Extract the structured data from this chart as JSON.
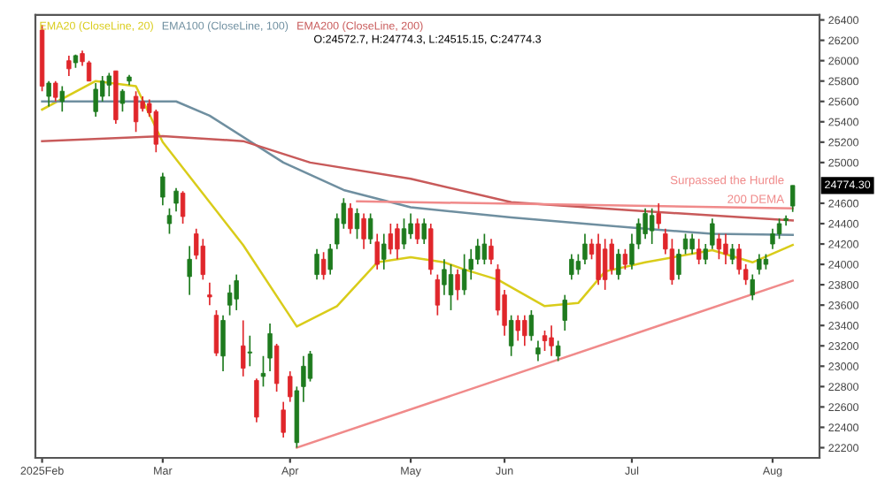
{
  "chart_data": {
    "type": "candlestick",
    "categories": [
      "2025Feb",
      null,
      null,
      null,
      null,
      null,
      null,
      null,
      null,
      null,
      null,
      null,
      null,
      null,
      null,
      null,
      null,
      null,
      "Mar",
      null,
      null,
      null,
      null,
      null,
      null,
      null,
      null,
      null,
      null,
      null,
      null,
      null,
      null,
      null,
      null,
      null,
      null,
      "Apr",
      null,
      null,
      null,
      null,
      null,
      null,
      null,
      null,
      null,
      null,
      null,
      null,
      null,
      null,
      null,
      null,
      null,
      "May",
      null,
      null,
      null,
      null,
      null,
      null,
      null,
      null,
      null,
      null,
      null,
      null,
      null,
      "Jun",
      null,
      null,
      null,
      null,
      null,
      null,
      null,
      null,
      null,
      null,
      null,
      null,
      null,
      null,
      null,
      null,
      null,
      null,
      "Jul",
      null,
      null,
      null,
      null,
      null,
      null,
      null,
      null,
      null,
      null,
      null,
      null,
      null,
      null,
      null,
      null,
      null,
      null,
      null,
      null,
      "Aug",
      null,
      null,
      null
    ],
    "ohlc": [
      [
        26300,
        26350,
        25700,
        25750
      ],
      [
        25650,
        25800,
        25550,
        25780
      ],
      [
        25780,
        25800,
        25600,
        25640
      ],
      [
        25600,
        25750,
        25500,
        25700
      ],
      [
        26000,
        26050,
        25850,
        25920
      ],
      [
        25980,
        26060,
        25930,
        26050
      ],
      [
        26070,
        26100,
        25950,
        25990
      ],
      [
        25980,
        26000,
        25800,
        25800
      ],
      [
        25500,
        25780,
        25450,
        25720
      ],
      [
        25650,
        25850,
        25600,
        25800
      ],
      [
        25760,
        25880,
        25650,
        25850
      ],
      [
        25900,
        25900,
        25380,
        25420
      ],
      [
        25580,
        25720,
        25500,
        25700
      ],
      [
        25800,
        25860,
        25760,
        25840
      ],
      [
        25650,
        25700,
        25300,
        25400
      ],
      [
        25600,
        25650,
        25500,
        25530
      ],
      [
        25580,
        25620,
        25450,
        25490
      ],
      [
        25500,
        25520,
        25100,
        25180
      ],
      [
        24660,
        24900,
        24580,
        24860
      ],
      [
        24400,
        24550,
        24300,
        24480
      ],
      [
        24600,
        24750,
        24520,
        24720
      ],
      [
        24700,
        24720,
        24400,
        24470
      ],
      [
        23880,
        24180,
        23700,
        24050
      ],
      [
        24300,
        24350,
        24050,
        24090
      ],
      [
        24180,
        24250,
        23850,
        23900
      ],
      [
        23700,
        23820,
        23600,
        23680
      ],
      [
        23500,
        23550,
        23100,
        23130
      ],
      [
        23100,
        23500,
        22950,
        23450
      ],
      [
        23600,
        23800,
        23500,
        23720
      ],
      [
        23660,
        23900,
        23550,
        23840
      ],
      [
        23200,
        23450,
        22900,
        22980
      ],
      [
        23130,
        23300,
        23000,
        23140
      ],
      [
        22860,
        22880,
        22450,
        22500
      ],
      [
        22900,
        23100,
        22800,
        22930
      ],
      [
        23080,
        23420,
        22950,
        23320
      ],
      [
        23200,
        23220,
        22750,
        22830
      ],
      [
        22570,
        22650,
        22300,
        22350
      ],
      [
        22900,
        22950,
        22650,
        22700
      ],
      [
        22250,
        22800,
        22200,
        22760
      ],
      [
        22800,
        23100,
        22650,
        23000
      ],
      [
        22880,
        23150,
        22850,
        23120
      ],
      [
        23900,
        24150,
        23850,
        24100
      ],
      [
        24050,
        24120,
        23850,
        23900
      ],
      [
        23950,
        24200,
        23900,
        24150
      ],
      [
        24200,
        24500,
        24150,
        24450
      ],
      [
        24400,
        24650,
        24350,
        24600
      ],
      [
        24550,
        24600,
        24300,
        24350
      ],
      [
        24350,
        24550,
        24250,
        24500
      ],
      [
        24450,
        24500,
        24150,
        24250
      ],
      [
        24250,
        24500,
        24200,
        24450
      ],
      [
        24220,
        24300,
        23950,
        24000
      ],
      [
        24050,
        24300,
        23950,
        24200
      ],
      [
        24300,
        24400,
        24100,
        24150
      ],
      [
        24350,
        24400,
        24050,
        24150
      ],
      [
        24200,
        24450,
        24150,
        24350
      ],
      [
        24300,
        24500,
        24250,
        24400
      ],
      [
        24400,
        24450,
        24200,
        24250
      ],
      [
        24250,
        24450,
        24200,
        24400
      ],
      [
        24350,
        24400,
        23900,
        23950
      ],
      [
        23850,
        23900,
        23500,
        23600
      ],
      [
        23800,
        24050,
        23700,
        23950
      ],
      [
        23700,
        24000,
        23550,
        23900
      ],
      [
        23900,
        23950,
        23650,
        23750
      ],
      [
        23750,
        24100,
        23700,
        23950
      ],
      [
        23950,
        24150,
        23850,
        24050
      ],
      [
        24050,
        24250,
        24000,
        24180
      ],
      [
        24050,
        24300,
        24000,
        24200
      ],
      [
        24180,
        24250,
        24000,
        24050
      ],
      [
        23950,
        24000,
        23500,
        23550
      ],
      [
        23700,
        23750,
        23300,
        23400
      ],
      [
        23200,
        23500,
        23100,
        23450
      ],
      [
        23450,
        23500,
        23250,
        23350
      ],
      [
        23450,
        23500,
        23200,
        23300
      ],
      [
        23300,
        23550,
        23250,
        23500
      ],
      [
        23120,
        23250,
        23050,
        23180
      ],
      [
        23300,
        23350,
        23150,
        23250
      ],
      [
        23280,
        23400,
        23100,
        23200
      ],
      [
        23100,
        23250,
        23050,
        23200
      ],
      [
        23450,
        23700,
        23350,
        23650
      ],
      [
        23900,
        24100,
        23850,
        24050
      ],
      [
        23950,
        24100,
        23900,
        24030
      ],
      [
        24050,
        24300,
        24000,
        24200
      ],
      [
        24200,
        24250,
        24050,
        24100
      ],
      [
        24200,
        24300,
        23800,
        23850
      ],
      [
        24150,
        24250,
        23750,
        23850
      ],
      [
        24200,
        24250,
        23900,
        23950
      ],
      [
        23900,
        24150,
        23850,
        24100
      ],
      [
        24100,
        24150,
        23950,
        24000
      ],
      [
        24000,
        24300,
        23950,
        24200
      ],
      [
        24200,
        24450,
        24150,
        24400
      ],
      [
        24300,
        24550,
        24250,
        24500
      ],
      [
        24330,
        24550,
        24200,
        24480
      ],
      [
        24500,
        24600,
        24350,
        24400
      ],
      [
        24300,
        24350,
        24100,
        24150
      ],
      [
        24150,
        24250,
        23800,
        23850
      ],
      [
        23900,
        24150,
        23850,
        24100
      ],
      [
        24150,
        24300,
        24100,
        24250
      ],
      [
        24150,
        24300,
        24100,
        24250
      ],
      [
        24150,
        24250,
        24000,
        24050
      ],
      [
        24050,
        24200,
        24000,
        24150
      ],
      [
        24190,
        24450,
        24150,
        24400
      ],
      [
        24250,
        24300,
        24050,
        24150
      ],
      [
        24200,
        24300,
        24000,
        24100
      ],
      [
        24050,
        24200,
        24000,
        24150
      ],
      [
        24150,
        24200,
        23900,
        23950
      ],
      [
        23950,
        24000,
        23800,
        23850
      ],
      [
        23700,
        23900,
        23650,
        23850
      ],
      [
        23950,
        24100,
        23900,
        24050
      ],
      [
        24000,
        24100,
        23950,
        24050
      ],
      [
        24200,
        24350,
        24150,
        24300
      ],
      [
        24300,
        24450,
        24250,
        24400
      ],
      [
        24430,
        24480,
        24380,
        24450
      ],
      [
        24572.7,
        24774.3,
        24515.15,
        24774.3
      ]
    ],
    "colors": [
      "#e0262b",
      "#1e7b1e",
      "#e0262b",
      "#1e7b1e",
      "#e0262b",
      "#1e7b1e",
      "#e0262b",
      "#e0262b",
      "#1e7b1e",
      "#1e7b1e",
      "#1e7b1e",
      "#e0262b",
      "#1e7b1e",
      "#1e7b1e",
      "#e0262b",
      "#e0262b",
      "#e0262b",
      "#e0262b",
      "#1e7b1e",
      "#1e7b1e",
      "#1e7b1e",
      "#e0262b",
      "#1e7b1e",
      "#e0262b",
      "#e0262b",
      "#e0262b",
      "#e0262b",
      "#1e7b1e",
      "#1e7b1e",
      "#1e7b1e",
      "#e0262b",
      "#1e7b1e",
      "#e0262b",
      "#1e7b1e",
      "#1e7b1e",
      "#e0262b",
      "#e0262b",
      "#e0262b",
      "#1e7b1e",
      "#1e7b1e",
      "#1e7b1e",
      "#1e7b1e",
      "#e0262b",
      "#1e7b1e",
      "#1e7b1e",
      "#1e7b1e",
      "#e0262b",
      "#1e7b1e",
      "#e0262b",
      "#1e7b1e",
      "#e0262b",
      "#1e7b1e",
      "#e0262b",
      "#e0262b",
      "#1e7b1e",
      "#1e7b1e",
      "#e0262b",
      "#1e7b1e",
      "#e0262b",
      "#e0262b",
      "#1e7b1e",
      "#1e7b1e",
      "#e0262b",
      "#1e7b1e",
      "#1e7b1e",
      "#1e7b1e",
      "#1e7b1e",
      "#e0262b",
      "#e0262b",
      "#e0262b",
      "#1e7b1e",
      "#e0262b",
      "#e0262b",
      "#1e7b1e",
      "#1e7b1e",
      "#e0262b",
      "#e0262b",
      "#1e7b1e",
      "#1e7b1e",
      "#1e7b1e",
      "#1e7b1e",
      "#1e7b1e",
      "#e0262b",
      "#e0262b",
      "#e0262b",
      "#e0262b",
      "#1e7b1e",
      "#e0262b",
      "#1e7b1e",
      "#1e7b1e",
      "#1e7b1e",
      "#1e7b1e",
      "#e0262b",
      "#e0262b",
      "#e0262b",
      "#1e7b1e",
      "#1e7b1e",
      "#1e7b1e",
      "#e0262b",
      "#1e7b1e",
      "#1e7b1e",
      "#e0262b",
      "#e0262b",
      "#1e7b1e",
      "#e0262b",
      "#e0262b",
      "#1e7b1e",
      "#1e7b1e",
      "#1e7b1e",
      "#1e7b1e",
      "#1e7b1e",
      "#1e7b1e",
      "#1e7b1e"
    ],
    "series": [
      {
        "type": "line",
        "name": "EMA20 (CloseLine, 20)",
        "color": "#d9cc1a",
        "values": [
          25520,
          null,
          null,
          null,
          null,
          null,
          null,
          null,
          25800,
          null,
          null,
          null,
          null,
          null,
          25750,
          null,
          null,
          null,
          25200,
          null,
          null,
          null,
          null,
          null,
          null,
          24610,
          null,
          null,
          null,
          null,
          24190,
          null,
          null,
          null,
          null,
          null,
          23590,
          null,
          23390,
          null,
          null,
          null,
          null,
          null,
          23590,
          null,
          null,
          null,
          null,
          null,
          24020,
          null,
          null,
          null,
          null,
          24070,
          null,
          null,
          null,
          null,
          24020,
          null,
          null,
          23950,
          null,
          null,
          null,
          null,
          23850,
          null,
          null,
          null,
          null,
          null,
          null,
          23590,
          null,
          null,
          null,
          null,
          23620,
          null,
          null,
          null,
          23930,
          null,
          null,
          null,
          null,
          null,
          24020,
          null,
          null,
          null,
          null,
          null,
          null,
          null,
          null,
          null,
          24140,
          null,
          null,
          null,
          null,
          null,
          24020,
          null,
          null,
          null,
          null,
          null,
          24190
        ]
      },
      {
        "type": "line",
        "name": "EMA100 (CloseLine, 100)",
        "color": "#6f8fa0",
        "values": [
          25600,
          null,
          null,
          null,
          null,
          null,
          null,
          null,
          null,
          null,
          null,
          null,
          null,
          null,
          null,
          null,
          null,
          null,
          null,
          null,
          25600,
          null,
          null,
          null,
          null,
          25460,
          null,
          null,
          null,
          null,
          null,
          null,
          null,
          null,
          null,
          null,
          25000,
          null,
          null,
          null,
          null,
          null,
          null,
          null,
          null,
          24730,
          null,
          null,
          null,
          null,
          null,
          null,
          null,
          null,
          null,
          24560,
          null,
          null,
          null,
          null,
          null,
          null,
          null,
          null,
          null,
          null,
          null,
          null,
          null,
          null,
          24460,
          null,
          null,
          null,
          null,
          null,
          null,
          null,
          null,
          null,
          null,
          null,
          null,
          null,
          null,
          null,
          null,
          null,
          24360,
          null,
          null,
          null,
          null,
          null,
          null,
          null,
          null,
          null,
          null,
          null,
          24300,
          null,
          null,
          null,
          null,
          null,
          null,
          null,
          null,
          null,
          null,
          null,
          24290
        ]
      },
      {
        "type": "line",
        "name": "EMA200 (CloseLine, 200)",
        "color": "#c85a5a",
        "values": [
          25210,
          null,
          null,
          null,
          null,
          null,
          null,
          null,
          null,
          null,
          null,
          null,
          null,
          null,
          null,
          null,
          null,
          null,
          25260,
          null,
          null,
          null,
          null,
          null,
          null,
          null,
          null,
          null,
          null,
          null,
          25210,
          null,
          null,
          null,
          null,
          null,
          null,
          null,
          null,
          null,
          25000,
          null,
          null,
          null,
          null,
          null,
          null,
          null,
          null,
          null,
          null,
          null,
          null,
          null,
          null,
          24840,
          null,
          null,
          null,
          null,
          null,
          null,
          null,
          null,
          null,
          null,
          null,
          null,
          null,
          null,
          24610,
          null,
          null,
          null,
          null,
          null,
          null,
          null,
          null,
          null,
          null,
          null,
          null,
          null,
          null,
          null,
          null,
          null,
          24530,
          null,
          null,
          null,
          null,
          null,
          null,
          null,
          null,
          null,
          null,
          null,
          null,
          null,
          null,
          null,
          null,
          null,
          null,
          null,
          null,
          null,
          null,
          null,
          24430
        ]
      },
      {
        "type": "line",
        "color": "#f08a8a",
        "values": [
          null,
          null,
          null,
          null,
          null,
          null,
          null,
          null,
          null,
          null,
          null,
          null,
          null,
          null,
          null,
          null,
          null,
          null,
          null,
          null,
          null,
          null,
          null,
          null,
          null,
          null,
          null,
          null,
          null,
          null,
          null,
          null,
          null,
          null,
          null,
          null,
          null,
          null,
          null,
          null,
          null,
          null,
          null,
          null,
          null,
          null,
          null,
          24620,
          null,
          null,
          null,
          null,
          null,
          null,
          null,
          null,
          null,
          null,
          null,
          null,
          null,
          null,
          null,
          null,
          null,
          null,
          null,
          null,
          null,
          null,
          null,
          null,
          null,
          null,
          null,
          null,
          null,
          null,
          null,
          null,
          null,
          null,
          null,
          null,
          null,
          null,
          null,
          null,
          null,
          null,
          null,
          null,
          null,
          null,
          null,
          null,
          null,
          null,
          null,
          null,
          null,
          null,
          null,
          null,
          null,
          null,
          null,
          null,
          null,
          null,
          null,
          null,
          24550
        ]
      },
      {
        "type": "line",
        "color": "#f08a8a",
        "values": [
          null,
          null,
          null,
          null,
          null,
          null,
          null,
          null,
          null,
          null,
          null,
          null,
          null,
          null,
          null,
          null,
          null,
          null,
          null,
          null,
          null,
          null,
          null,
          null,
          null,
          null,
          null,
          null,
          null,
          null,
          null,
          null,
          null,
          null,
          null,
          null,
          null,
          null,
          22200,
          null,
          null,
          null,
          null,
          null,
          null,
          null,
          null,
          null,
          null,
          null,
          null,
          null,
          null,
          null,
          null,
          null,
          null,
          null,
          null,
          null,
          null,
          null,
          null,
          null,
          null,
          null,
          null,
          null,
          null,
          null,
          null,
          null,
          null,
          null,
          null,
          null,
          null,
          null,
          null,
          null,
          null,
          null,
          null,
          null,
          null,
          null,
          null,
          null,
          null,
          null,
          null,
          null,
          null,
          null,
          null,
          null,
          null,
          null,
          null,
          null,
          null,
          null,
          null,
          null,
          null,
          null,
          null,
          null,
          null,
          null,
          null,
          null,
          23840
        ]
      }
    ],
    "ylim": [
      22100,
      26450
    ],
    "yticks": [
      22200,
      22400,
      22600,
      22800,
      23000,
      23200,
      23400,
      23600,
      23800,
      24000,
      24200,
      24400,
      24600,
      25000,
      25200,
      25400,
      25600,
      25800,
      26000,
      26200,
      26400
    ],
    "legend": "top left",
    "grid": false,
    "annotations": [
      "O:24572.7, H:24774.3, L:24515.15, C:24774.3",
      "Surpassed the Hurdle",
      "200 DEMA",
      "24774.30"
    ]
  }
}
